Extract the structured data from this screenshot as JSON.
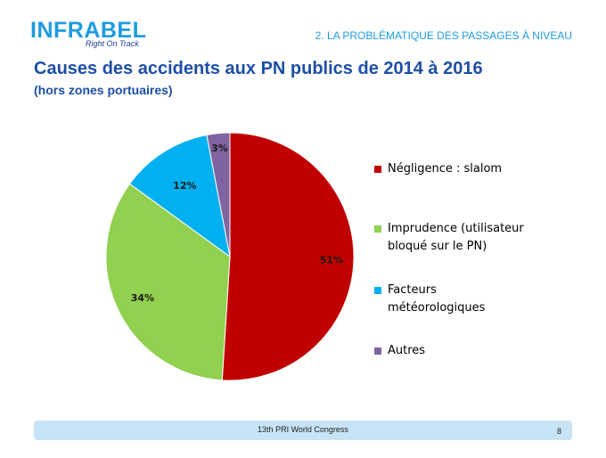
{
  "header": {
    "logo_text": "INFRABEL",
    "logo_tagline": "Right On Track",
    "section": "2. LA PROBLÉMATIQUE DES PASSAGES À NIVEAU",
    "title": "Causes des accidents aux PN publics de 2014 à 2016",
    "subtitle": "(hors zones portuaires)"
  },
  "chart_data": {
    "type": "pie",
    "title": "Causes des accidents aux PN publics de 2014 à 2016",
    "categories": [
      "Négligence : slalom",
      "Imprudence (utilisateur bloqué sur le PN)",
      "Facteurs météorologiques",
      "Autres"
    ],
    "values": [
      51,
      34,
      12,
      3
    ],
    "labels": [
      "51%",
      "34%",
      "12%",
      "3%"
    ],
    "colors": [
      "#c00000",
      "#92d050",
      "#00b0f0",
      "#8064a2"
    ],
    "legend": "right"
  },
  "footer": {
    "text": "13th PRI World Congress",
    "page": "8"
  }
}
